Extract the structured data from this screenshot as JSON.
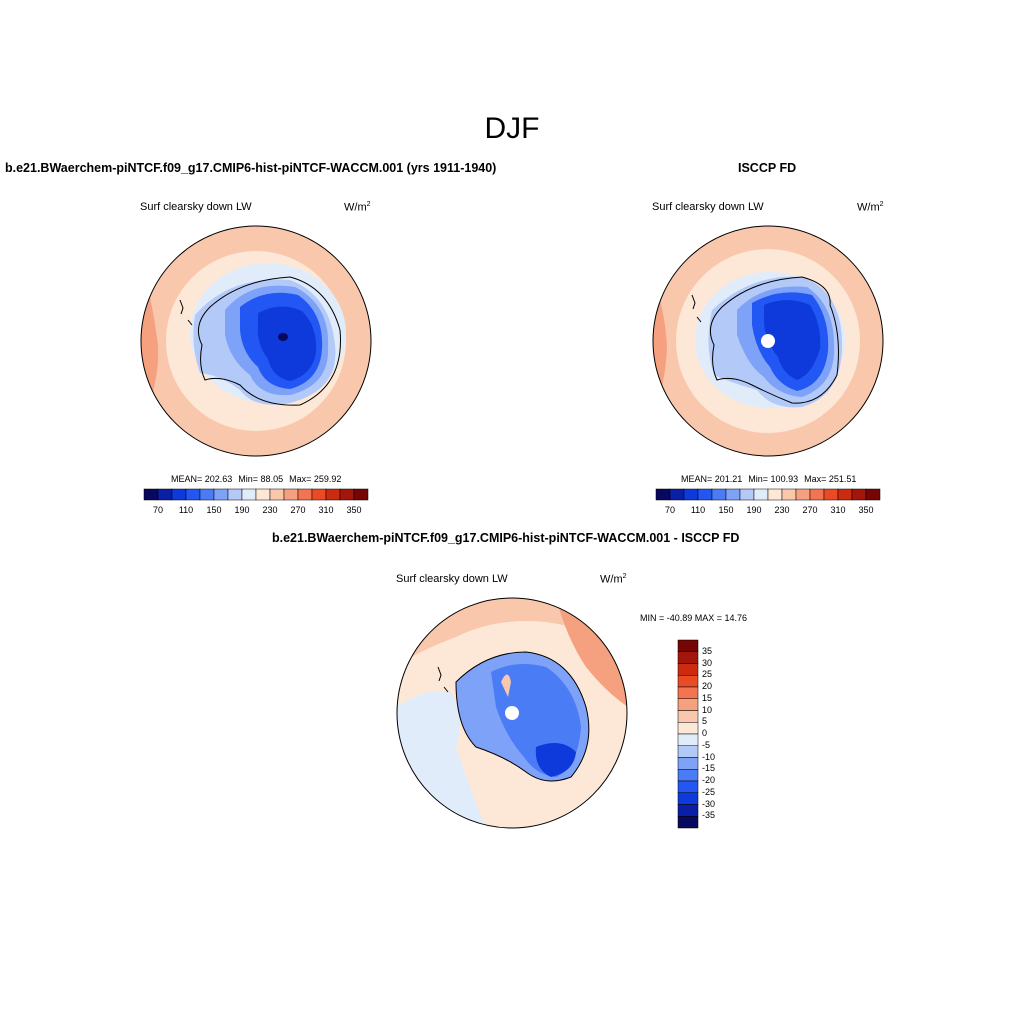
{
  "season": "DJF",
  "units": {
    "base": "W/m",
    "exp": "2"
  },
  "variable": "Surf clearsky down LW",
  "panels": {
    "model": {
      "title": "b.e21.BWaerchem-piNTCF.f09_g17.CMIP6-hist-piNTCF-WACCM.001 (yrs 1911-1940)",
      "stats": {
        "mean": "MEAN= 202.63",
        "min": "Min=  88.05",
        "max": "Max= 259.92"
      }
    },
    "obs": {
      "title": "ISCCP FD",
      "stats": {
        "mean": "MEAN= 201.21",
        "min": "Min= 100.93",
        "max": "Max= 251.51"
      }
    },
    "diff": {
      "title": "b.e21.BWaerchem-piNTCF.f09_g17.CMIP6-hist-piNTCF-WACCM.001 - ISCCP FD",
      "stats": "MIN = -40.89 MAX =  14.76"
    }
  },
  "colorbar_abs": {
    "colors": [
      "#08085e",
      "#0a1fa6",
      "#0f3adb",
      "#2257f3",
      "#4a7cf5",
      "#7da2f7",
      "#b3c9f8",
      "#e1ecfa",
      "#fde8d8",
      "#f9c7ac",
      "#f5a07e",
      "#f27451",
      "#ea4b25",
      "#cd2b0f",
      "#a4160a",
      "#760505"
    ],
    "labels": [
      "70",
      "110",
      "150",
      "190",
      "230",
      "270",
      "310",
      "350"
    ]
  },
  "colorbar_diff": {
    "colors": [
      "#760505",
      "#a4160a",
      "#cd2b0f",
      "#ea4b25",
      "#f27451",
      "#f5a07e",
      "#f9c7ac",
      "#fde8d8",
      "#e1ecfa",
      "#b3c9f8",
      "#7da2f7",
      "#4a7cf5",
      "#2257f3",
      "#0f3adb",
      "#0a1fa6",
      "#08085e"
    ],
    "labels": [
      "35",
      "30",
      "25",
      "20",
      "15",
      "10",
      "5",
      "0",
      "-5",
      "-10",
      "-15",
      "-20",
      "-25",
      "-30",
      "-35"
    ]
  }
}
